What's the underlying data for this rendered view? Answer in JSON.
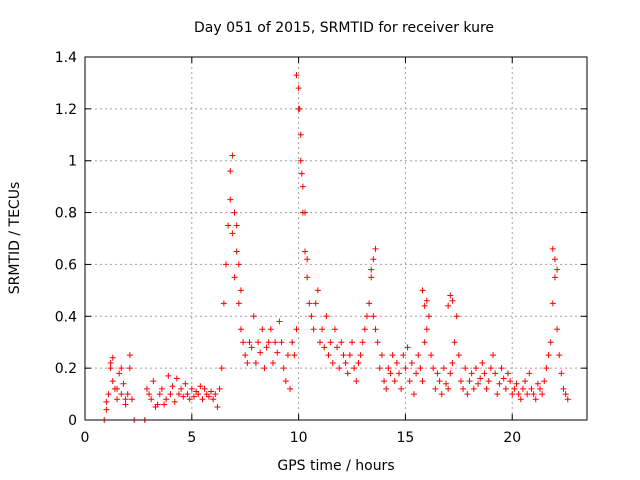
{
  "chart_data": {
    "type": "scatter",
    "title": "Day 051 of 2015, SRMTID for receiver kure",
    "xlabel": "GPS time / hours",
    "ylabel": "SRMTID / TECUs",
    "xlim": [
      0,
      23.5
    ],
    "ylim": [
      0,
      1.4
    ],
    "xticks": [
      0,
      5,
      10,
      15,
      20
    ],
    "xtick_labels": [
      "0",
      "5",
      "10",
      "15",
      "20"
    ],
    "yticks": [
      0,
      0.2,
      0.4,
      0.6,
      0.8,
      1.0,
      1.2,
      1.4
    ],
    "ytick_labels": [
      "0",
      "0.2",
      "0.4",
      "0.6",
      "0.8",
      "1",
      "1.2",
      "1.4"
    ],
    "grid": true,
    "marker": "+",
    "color": "#ff0000",
    "series": [
      {
        "name": "SRMTID",
        "x": [
          0.9,
          1.0,
          1.1,
          1.2,
          1.3,
          1.4,
          1.5,
          1.6,
          1.7,
          1.8,
          1.9,
          2.0,
          2.1,
          2.2,
          2.3,
          2.8,
          2.9,
          3.0,
          3.1,
          3.2,
          3.3,
          3.4,
          3.5,
          3.6,
          3.7,
          3.8,
          3.9,
          4.0,
          4.1,
          4.2,
          4.3,
          4.4,
          4.5,
          4.6,
          4.7,
          4.8,
          4.9,
          5.0,
          5.1,
          5.2,
          5.3,
          5.4,
          5.5,
          5.6,
          5.7,
          5.8,
          5.9,
          6.0,
          6.1,
          6.2,
          6.3,
          6.4,
          6.5,
          6.6,
          6.7,
          6.8,
          6.9,
          7.0,
          7.1,
          7.2,
          7.3,
          7.4,
          7.5,
          7.6,
          7.7,
          7.8,
          7.9,
          8.0,
          8.1,
          8.2,
          8.3,
          8.4,
          8.5,
          8.6,
          8.7,
          8.8,
          8.9,
          9.0,
          9.1,
          9.2,
          9.3,
          9.4,
          9.5,
          9.6,
          9.7,
          9.8,
          9.9,
          10.0,
          10.1,
          10.2,
          10.3,
          10.4,
          10.5,
          10.6,
          10.7,
          10.8,
          10.9,
          11.0,
          11.1,
          11.2,
          11.3,
          11.4,
          11.5,
          11.6,
          11.7,
          11.8,
          11.9,
          12.0,
          12.1,
          12.2,
          12.3,
          12.4,
          12.5,
          12.6,
          12.7,
          12.8,
          12.9,
          13.0,
          13.1,
          13.2,
          13.3,
          13.4,
          13.5,
          13.6,
          13.7,
          13.8,
          13.9,
          14.0,
          14.1,
          14.2,
          14.3,
          14.4,
          14.5,
          14.6,
          14.7,
          14.8,
          14.9,
          15.0,
          15.1,
          15.2,
          15.3,
          15.4,
          15.5,
          15.6,
          15.7,
          15.8,
          15.9,
          16.0,
          16.1,
          16.2,
          16.3,
          16.4,
          16.5,
          16.6,
          16.7,
          16.8,
          16.9,
          17.0,
          17.1,
          17.2,
          17.3,
          17.4,
          17.5,
          17.6,
          17.7,
          17.8,
          17.9,
          18.0,
          18.1,
          18.2,
          18.3,
          18.4,
          18.5,
          18.6,
          18.7,
          18.8,
          18.9,
          19.0,
          19.1,
          19.2,
          19.3,
          19.4,
          19.5,
          19.6,
          19.7,
          19.8,
          19.9,
          20.0,
          20.1,
          20.2,
          20.3,
          20.4,
          20.5,
          20.6,
          20.7,
          20.8,
          20.9,
          21.0,
          21.1,
          21.2,
          21.3,
          21.4,
          21.5,
          21.6,
          21.7,
          21.8,
          21.9,
          22.0,
          22.1,
          22.2,
          22.3,
          22.4,
          22.5,
          22.6,
          1.0,
          1.2,
          1.3,
          1.5,
          1.7,
          1.9,
          2.1,
          6.8,
          6.9,
          7.0,
          7.1,
          7.2,
          7.3,
          9.9,
          10.0,
          10.05,
          10.1,
          10.15,
          10.2,
          10.3,
          10.4,
          13.5,
          13.6,
          13.4,
          17.1,
          17.2,
          17.0,
          21.9,
          22.0,
          22.1,
          15.8,
          15.9,
          16.0
        ],
        "y": [
          0.0,
          0.04,
          0.1,
          0.2,
          0.15,
          0.12,
          0.08,
          0.18,
          0.1,
          0.14,
          0.06,
          0.1,
          0.2,
          0.08,
          0.0,
          0.0,
          0.12,
          0.1,
          0.08,
          0.15,
          0.05,
          0.06,
          0.1,
          0.12,
          0.06,
          0.08,
          0.17,
          0.1,
          0.13,
          0.07,
          0.16,
          0.1,
          0.12,
          0.09,
          0.14,
          0.1,
          0.08,
          0.12,
          0.09,
          0.11,
          0.1,
          0.13,
          0.08,
          0.12,
          0.1,
          0.09,
          0.11,
          0.08,
          0.1,
          0.05,
          0.12,
          0.2,
          0.45,
          0.6,
          0.75,
          0.85,
          0.72,
          0.55,
          0.65,
          0.45,
          0.35,
          0.3,
          0.25,
          0.22,
          0.3,
          0.28,
          0.4,
          0.22,
          0.3,
          0.26,
          0.35,
          0.2,
          0.28,
          0.3,
          0.35,
          0.22,
          0.3,
          0.26,
          0.38,
          0.3,
          0.2,
          0.15,
          0.25,
          0.12,
          0.3,
          0.25,
          0.35,
          1.2,
          1.0,
          0.8,
          0.65,
          0.55,
          0.45,
          0.4,
          0.35,
          0.45,
          0.5,
          0.3,
          0.35,
          0.28,
          0.4,
          0.25,
          0.3,
          0.22,
          0.35,
          0.28,
          0.2,
          0.3,
          0.25,
          0.22,
          0.18,
          0.25,
          0.3,
          0.2,
          0.15,
          0.22,
          0.25,
          0.3,
          0.35,
          0.4,
          0.45,
          0.55,
          0.4,
          0.35,
          0.3,
          0.2,
          0.25,
          0.15,
          0.12,
          0.2,
          0.18,
          0.25,
          0.15,
          0.22,
          0.18,
          0.12,
          0.25,
          0.2,
          0.28,
          0.15,
          0.22,
          0.1,
          0.18,
          0.25,
          0.2,
          0.15,
          0.3,
          0.35,
          0.4,
          0.25,
          0.2,
          0.12,
          0.18,
          0.15,
          0.1,
          0.2,
          0.14,
          0.12,
          0.18,
          0.22,
          0.3,
          0.4,
          0.25,
          0.15,
          0.12,
          0.2,
          0.1,
          0.15,
          0.18,
          0.12,
          0.2,
          0.14,
          0.16,
          0.22,
          0.18,
          0.12,
          0.15,
          0.2,
          0.25,
          0.18,
          0.1,
          0.14,
          0.2,
          0.16,
          0.12,
          0.18,
          0.15,
          0.1,
          0.12,
          0.14,
          0.1,
          0.08,
          0.12,
          0.15,
          0.1,
          0.18,
          0.12,
          0.1,
          0.08,
          0.14,
          0.12,
          0.1,
          0.15,
          0.2,
          0.25,
          0.3,
          0.45,
          0.55,
          0.35,
          0.25,
          0.18,
          0.12,
          0.1,
          0.08,
          0.07,
          0.22,
          0.24,
          0.12,
          0.2,
          0.08,
          0.25,
          0.96,
          1.02,
          0.8,
          0.75,
          0.6,
          0.5,
          1.33,
          1.28,
          1.2,
          1.1,
          0.95,
          0.9,
          0.8,
          0.62,
          0.62,
          0.66,
          0.58,
          0.48,
          0.46,
          0.44,
          0.66,
          0.62,
          0.58,
          0.5,
          0.44,
          0.46
        ]
      }
    ]
  }
}
